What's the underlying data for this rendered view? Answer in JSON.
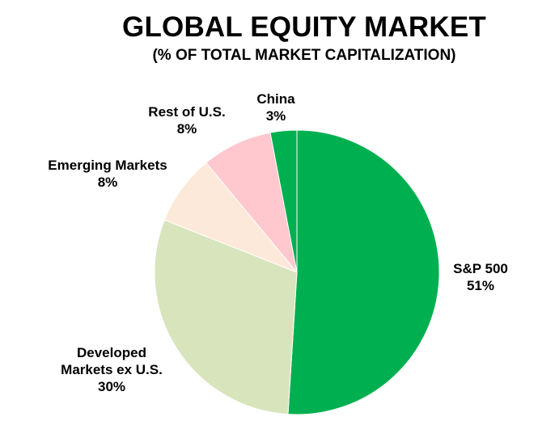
{
  "chart_data": {
    "type": "pie",
    "title": "GLOBAL EQUITY MARKET",
    "subtitle": "(% OF TOTAL MARKET CAPITALIZATION)",
    "slices": [
      {
        "name": "S&P 500",
        "name_lines": [
          "S&P 500"
        ],
        "value": 51,
        "value_label": "51%",
        "color": "#00b050"
      },
      {
        "name": "Developed Markets ex U.S.",
        "name_lines": [
          "Developed",
          "Markets ex U.S."
        ],
        "value": 30,
        "value_label": "30%",
        "color": "#d8e4bc"
      },
      {
        "name": "Emerging Markets",
        "name_lines": [
          "Emerging Markets"
        ],
        "value": 8,
        "value_label": "8%",
        "color": "#fde9d9"
      },
      {
        "name": "Rest of U.S.",
        "name_lines": [
          "Rest of U.S."
        ],
        "value": 8,
        "value_label": "8%",
        "color": "#ffc7ce"
      },
      {
        "name": "China",
        "name_lines": [
          "China"
        ],
        "value": 3,
        "value_label": "3%",
        "color": "#00b050"
      }
    ],
    "start_angle_deg": 0,
    "direction": "clockwise",
    "legend": "none"
  }
}
